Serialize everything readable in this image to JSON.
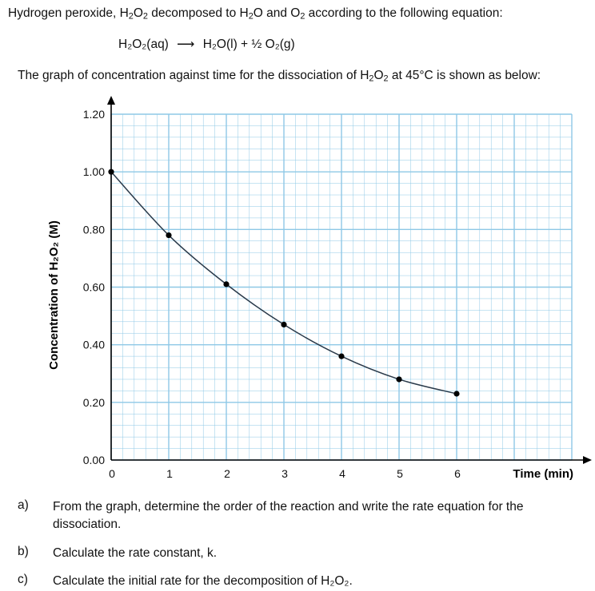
{
  "intro": {
    "before": "Hydrogen peroxide, H",
    "sub1": "2",
    "mid1": "O",
    "sub2": "2",
    "after": " decomposed to H",
    "sub3": "2",
    "mid2": "O and O",
    "sub4": "2",
    "tail": " according to the following equation:"
  },
  "equation": {
    "reactant": "H₂O₂(aq)",
    "arrow": "⟶",
    "products": "H₂O(l)  +  ½ O₂(g)"
  },
  "graph_caption": {
    "before": "The graph of concentration against time for the dissociation of H",
    "sub1": "2",
    "mid": "O",
    "sub2": "2",
    "after": " at 45°C is shown as below:"
  },
  "chart_data": {
    "type": "line",
    "x": [
      0,
      1,
      2,
      3,
      4,
      5,
      6
    ],
    "y": [
      1.0,
      0.78,
      0.61,
      0.47,
      0.36,
      0.28,
      0.23
    ],
    "xlabel": "Time (min)",
    "ylabel": "Concentration of H₂O₂ (M)",
    "xlim": [
      0,
      8
    ],
    "ylim": [
      0,
      1.2
    ],
    "x_ticks": [
      "0",
      "1",
      "2",
      "3",
      "4",
      "5",
      "6"
    ],
    "y_ticks": [
      "0.00",
      "0.20",
      "0.40",
      "0.60",
      "0.80",
      "1.00",
      "1.20"
    ],
    "grid": true,
    "grid_color": "#8ec8e6",
    "line_color": "#2a3a4a",
    "marker_color": "#000000"
  },
  "questions": [
    {
      "letter": "a)",
      "text": "From the graph, determine the order of the reaction and write the rate equation for the dissociation."
    },
    {
      "letter": "b)",
      "text": "Calculate the rate constant, k."
    },
    {
      "letter": "c)",
      "text": "Calculate the initial rate for the decomposition of H₂O₂."
    }
  ]
}
